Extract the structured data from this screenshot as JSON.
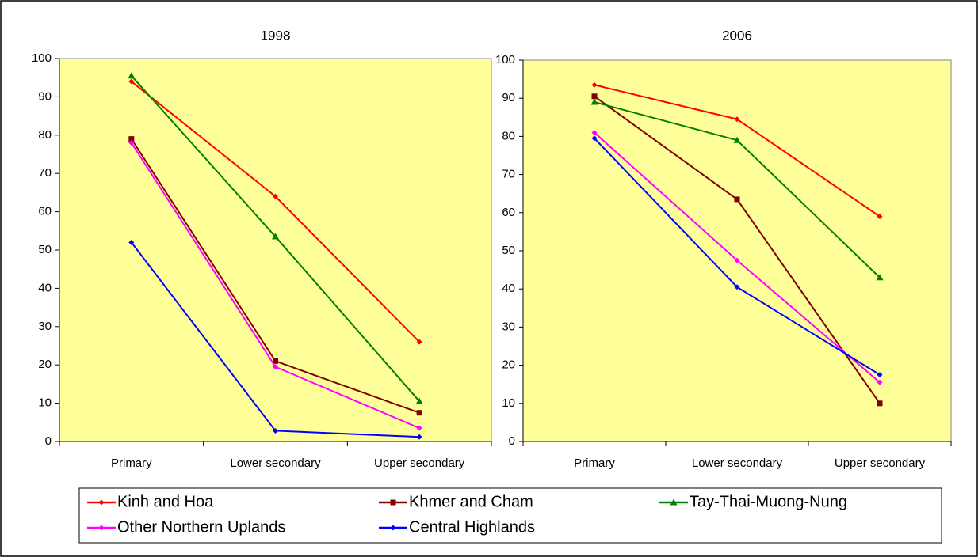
{
  "chart_data": [
    {
      "type": "line",
      "title": "1998",
      "categories": [
        "Primary",
        "Lower secondary",
        "Upper secondary"
      ],
      "ylim": [
        0,
        100
      ],
      "yticks": [
        0,
        10,
        20,
        30,
        40,
        50,
        60,
        70,
        80,
        90,
        100
      ],
      "series": [
        {
          "name": "Kinh and Hoa",
          "color": "#ff0000",
          "values": [
            94,
            64,
            26
          ]
        },
        {
          "name": "Khmer and Cham",
          "color": "#800000",
          "values": [
            79,
            21,
            7.5
          ]
        },
        {
          "name": "Tay-Thai-Muong-Nung",
          "color": "#008000",
          "values": [
            95.5,
            53.5,
            10.5
          ]
        },
        {
          "name": "Other Northern Uplands",
          "color": "#ff00ff",
          "values": [
            78,
            19.5,
            3.5
          ]
        },
        {
          "name": "Central Highlands",
          "color": "#0000ff",
          "values": [
            52,
            2.8,
            1.2
          ]
        }
      ]
    },
    {
      "type": "line",
      "title": "2006",
      "categories": [
        "Primary",
        "Lower secondary",
        "Upper secondary"
      ],
      "ylim": [
        0,
        100
      ],
      "yticks": [
        0,
        10,
        20,
        30,
        40,
        50,
        60,
        70,
        80,
        90,
        100
      ],
      "series": [
        {
          "color": "#ff0000",
          "values": [
            93.5,
            84.5,
            59
          ]
        },
        {
          "color": "#800000",
          "values": [
            90.5,
            63.5,
            10
          ]
        },
        {
          "color": "#008000",
          "values": [
            89,
            79,
            43
          ]
        },
        {
          "color": "#ff00ff",
          "values": [
            81,
            47.5,
            15.5
          ]
        },
        {
          "color": "#0000ff",
          "values": [
            79.5,
            40.5,
            17.5
          ]
        }
      ]
    }
  ]
}
